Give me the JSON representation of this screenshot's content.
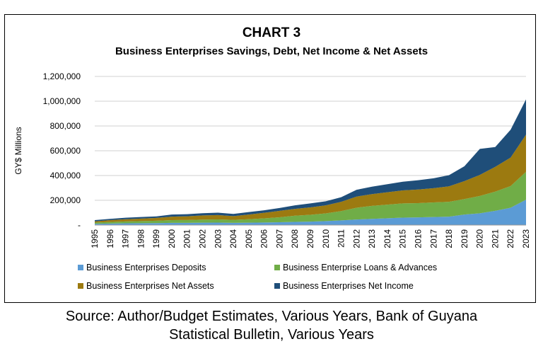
{
  "chart_data": {
    "type": "area",
    "stacked": true,
    "title": "CHART 3",
    "subtitle": "Business Enterprises Savings, Debt, Net Income & Net Assets",
    "xlabel": "",
    "ylabel": "GY$ Millions",
    "ylim": [
      0,
      1200000
    ],
    "y_ticks": [
      "-",
      "200,000",
      "400,000",
      "600,000",
      "800,000",
      "1,000,000",
      "1,200,000"
    ],
    "y_tick_values": [
      0,
      200000,
      400000,
      600000,
      800000,
      1000000,
      1200000
    ],
    "grid": true,
    "legend_position": "bottom",
    "x": [
      "1995",
      "1996",
      "1997",
      "1998",
      "1999",
      "2000",
      "2001",
      "2002",
      "2003",
      "2004",
      "2005",
      "2006",
      "2007",
      "2008",
      "2009",
      "2010",
      "2011",
      "2012",
      "2013",
      "2014",
      "2015",
      "2016",
      "2017",
      "2018",
      "2019",
      "2020",
      "2021",
      "2022",
      "2023"
    ],
    "series": [
      {
        "name": "Business Enterprises Deposits",
        "color": "#5B9BD5",
        "values": [
          10000,
          12000,
          14000,
          15000,
          16000,
          18000,
          18000,
          19000,
          20000,
          18000,
          19000,
          21000,
          23000,
          26000,
          28000,
          32000,
          38000,
          45000,
          50000,
          55000,
          60000,
          62000,
          65000,
          68000,
          85000,
          95000,
          115000,
          140000,
          205000
        ]
      },
      {
        "name": "Business Enterprise Loans & Advances",
        "color": "#70AD47",
        "values": [
          10000,
          13000,
          15000,
          17000,
          19000,
          22000,
          23000,
          25000,
          26000,
          24000,
          28000,
          33000,
          40000,
          50000,
          55000,
          62000,
          75000,
          95000,
          105000,
          110000,
          115000,
          115000,
          118000,
          120000,
          125000,
          140000,
          155000,
          175000,
          225000
        ]
      },
      {
        "name": "Business Enterprises Net Assets",
        "color": "#9C7A10",
        "values": [
          10000,
          15000,
          18000,
          20000,
          23000,
          28000,
          30000,
          34000,
          35000,
          30000,
          38000,
          45000,
          52000,
          55000,
          60000,
          65000,
          75000,
          90000,
          95000,
          100000,
          105000,
          110000,
          115000,
          125000,
          145000,
          170000,
          200000,
          230000,
          300000
        ]
      },
      {
        "name": "Business Enterprises Net Income",
        "color": "#1F4E79",
        "values": [
          10000,
          10000,
          12000,
          13000,
          12000,
          17000,
          17000,
          18000,
          19000,
          18000,
          20000,
          20000,
          23000,
          28000,
          32000,
          33000,
          37000,
          55000,
          60000,
          65000,
          70000,
          75000,
          80000,
          90000,
          120000,
          210000,
          160000,
          225000,
          285000
        ]
      }
    ]
  },
  "source": {
    "line1": "Source: Author/Budget Estimates, Various Years, Bank of Guyana",
    "line2": "Statistical Bulletin, Various Years"
  }
}
